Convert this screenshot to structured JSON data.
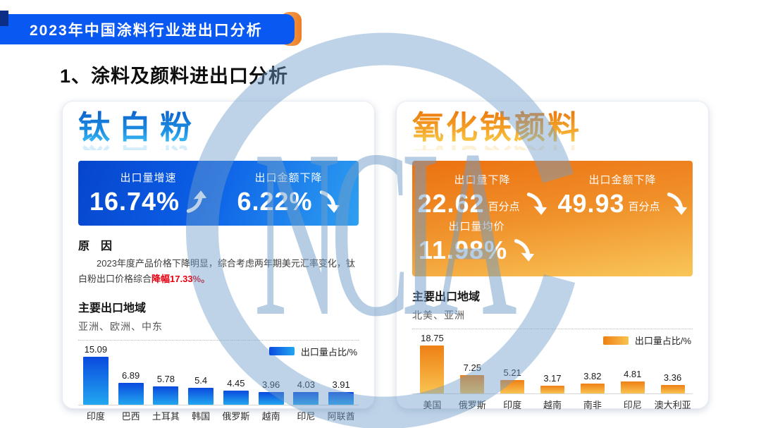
{
  "banner": {
    "title": "2023年中国涂料行业进出口分析",
    "bg_color": "#0a58f2",
    "accent_color": "#ee7d22"
  },
  "heading": "1、涂料及颜料进出口分析",
  "watermark": {
    "text": "NCIA",
    "color": "#6f9dc9"
  },
  "left_panel": {
    "title": "钛白粉",
    "title_color": "#1a8ae0",
    "stats": [
      {
        "label": "出口量增速",
        "value": "16.74%",
        "suffix": "",
        "direction": "up"
      },
      {
        "label": "出口金额下降",
        "value": "6.22%",
        "suffix": "",
        "direction": "down"
      }
    ],
    "reason_title": "原　因",
    "reason_text": "2023年度产品价格下降明显，综合考虑两年期美元汇率变化，钛白粉出口价格综合",
    "reason_highlight": "降幅17.33%。",
    "region_title": "主要出口地域",
    "region_text": "亚洲、欧洲、中东"
  },
  "right_panel": {
    "title": "氧化铁颜料",
    "title_color": "#f4a42a",
    "stats": [
      {
        "label": "出口量下降",
        "value": "22.62",
        "suffix": "百分点",
        "direction": "down"
      },
      {
        "label": "出口金额下降",
        "value": "49.93",
        "suffix": "百分点",
        "direction": "down"
      },
      {
        "label": "出口量均价",
        "value": "11.98%",
        "suffix": "",
        "direction": "down"
      }
    ],
    "region_title": "主要出口地域",
    "region_text": "北美、亚洲"
  },
  "chart_data": [
    {
      "type": "bar",
      "legend": "出口量占比/%",
      "legend_position": "top-right",
      "categories": [
        "印度",
        "巴西",
        "土耳其",
        "韩国",
        "俄罗斯",
        "越南",
        "印尼",
        "阿联酋"
      ],
      "values": [
        15.09,
        6.89,
        5.78,
        5.4,
        4.45,
        3.96,
        4.03,
        3.91
      ],
      "ylim": [
        0,
        16
      ],
      "grid": false,
      "bar_gradient": [
        "#0a4ade",
        "#22a7f0"
      ]
    },
    {
      "type": "bar",
      "legend": "出口量占比/%",
      "legend_position": "top-right",
      "categories": [
        "美国",
        "俄罗斯",
        "印度",
        "越南",
        "南非",
        "印尼",
        "澳大利亚"
      ],
      "values": [
        18.75,
        7.25,
        5.21,
        3.17,
        3.82,
        4.81,
        3.36
      ],
      "ylim": [
        0,
        20
      ],
      "grid": false,
      "bar_gradient": [
        "#ee8015",
        "#f9c350"
      ]
    }
  ]
}
